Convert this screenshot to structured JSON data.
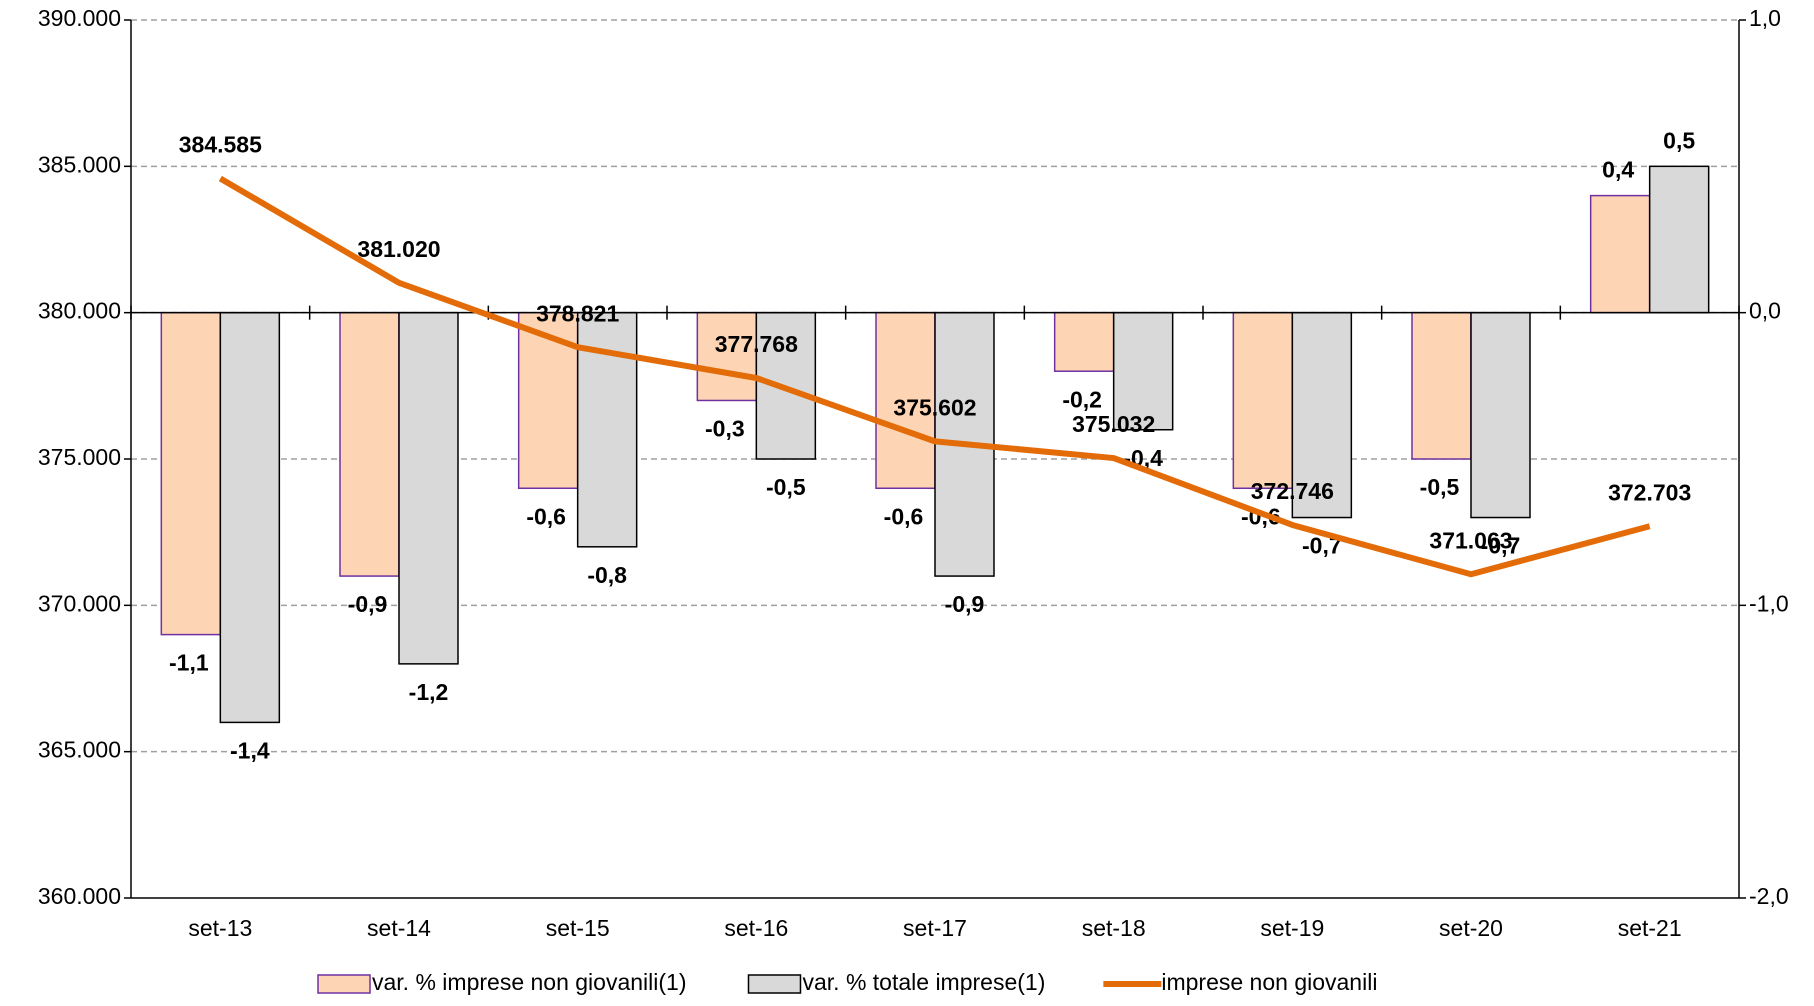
{
  "chart_data": {
    "type": "bar",
    "categories": [
      "set-13",
      "set-14",
      "set-15",
      "set-16",
      "set-17",
      "set-18",
      "set-19",
      "set-20",
      "set-21"
    ],
    "series": [
      {
        "name": "var. % imprese non giovanili(1)",
        "color": "#fdd5b4",
        "stroke": "#7030a0",
        "axis": "y2",
        "values": [
          -1.1,
          -0.9,
          -0.6,
          -0.3,
          -0.6,
          -0.2,
          -0.6,
          -0.5,
          0.4
        ],
        "value_labels": [
          "-1,1",
          "-0,9",
          "-0,6",
          "-0,3",
          "-0,6",
          "-0,2",
          "-0,6",
          "-0,5",
          "0,4"
        ]
      },
      {
        "name": "var. % totale imprese(1)",
        "color": "#d9d9d9",
        "stroke": "#000000",
        "axis": "y2",
        "values": [
          -1.4,
          -1.2,
          -0.8,
          -0.5,
          -0.9,
          -0.4,
          -0.7,
          -0.7,
          0.5
        ],
        "value_labels": [
          "-1,4",
          "-1,2",
          "-0,8",
          "-0,5",
          "-0,9",
          "-0,4",
          "-0,7",
          "-0,7",
          "0,5"
        ]
      },
      {
        "name": "imprese non giovanili",
        "color": "#e36c09",
        "type": "line",
        "values": [
          384585,
          381020,
          378821,
          377768,
          375602,
          375032,
          372746,
          371063,
          372703
        ],
        "value_labels": [
          "384.585",
          "381.020",
          "378.821",
          "377.768",
          "375.602",
          "375.032",
          "372.746",
          "371.063",
          "372.703"
        ]
      }
    ],
    "ylim": [
      360000,
      390000
    ],
    "yticks": [
      {
        "value": 360000,
        "label": "360.000"
      },
      {
        "value": 365000,
        "label": "365.000"
      },
      {
        "value": 370000,
        "label": "370.000"
      },
      {
        "value": 375000,
        "label": "375.000"
      },
      {
        "value": 380000,
        "label": "380.000"
      },
      {
        "value": 385000,
        "label": "385.000"
      },
      {
        "value": 390000,
        "label": "390.000"
      }
    ],
    "y2lim": [
      -2,
      1
    ],
    "y2ticks": [
      {
        "value": -2,
        "label": "-2,0"
      },
      {
        "value": -1,
        "label": "-1,0"
      },
      {
        "value": 0,
        "label": "0,0"
      },
      {
        "value": 1,
        "label": "1,0"
      }
    ],
    "grid": true,
    "negative_label_color": "#ff0000",
    "legend": "bottom"
  }
}
